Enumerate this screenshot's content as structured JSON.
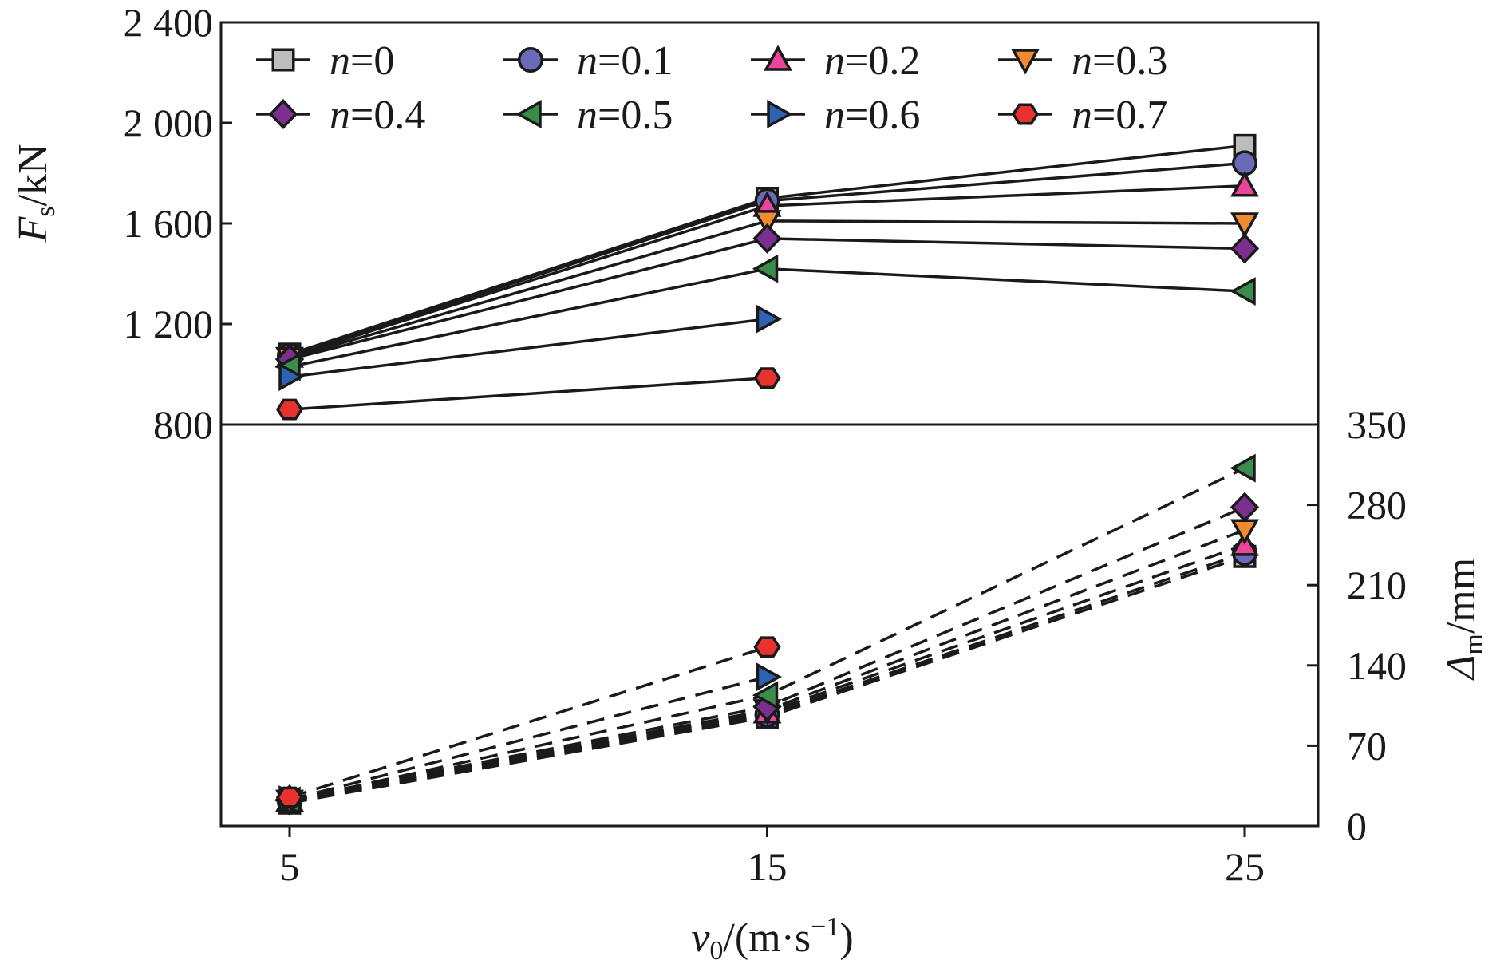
{
  "chart_data": {
    "type": "line",
    "x": [
      5,
      15,
      25
    ],
    "xlabel": {
      "main": "v",
      "sub": "0",
      "unit": "/(m·s",
      "sup": "−1",
      "close": ")"
    },
    "xticks": [
      "5",
      "15",
      "25"
    ],
    "top_panel": {
      "ylabel": {
        "main": "F",
        "sub": "s",
        "unit": "/kN"
      },
      "ylim": [
        800,
        2400
      ],
      "yticks": [
        "800",
        "1 200",
        "1 600",
        "2 000",
        "2 400"
      ],
      "ytick_values": [
        800,
        1200,
        1600,
        2000,
        2400
      ],
      "line_style": "solid"
    },
    "bottom_panel": {
      "ylabel": {
        "main": "Δ",
        "sub": "m",
        "unit": "/mm"
      },
      "ylim": [
        0,
        350
      ],
      "yticks": [
        "0",
        "70",
        "140",
        "210",
        "280",
        "350"
      ],
      "ytick_values": [
        0,
        70,
        140,
        210,
        280,
        350
      ],
      "axis_side": "right",
      "line_style": "dashed"
    },
    "legend": {
      "placement": "top",
      "columns": 4
    },
    "series": [
      {
        "name": "n=0",
        "var": "n",
        "val": "=0",
        "marker": "square",
        "color": "#bdbdbd",
        "force": [
          1080,
          1700,
          1910
        ],
        "delta": [
          20,
          95,
          235
        ]
      },
      {
        "name": "n=0.1",
        "var": "n",
        "val": "=0.1",
        "marker": "circle",
        "color": "#6a6ab8",
        "force": [
          1075,
          1690,
          1840
        ],
        "delta": [
          21,
          97,
          238
        ]
      },
      {
        "name": "n=0.2",
        "var": "n",
        "val": "=0.2",
        "marker": "triangle-up",
        "color": "#e8459b",
        "force": [
          1070,
          1670,
          1750
        ],
        "delta": [
          22,
          99,
          245
        ]
      },
      {
        "name": "n=0.3",
        "var": "n",
        "val": "=0.3",
        "marker": "triangle-down",
        "color": "#f28b30",
        "force": [
          1065,
          1610,
          1600
        ],
        "delta": [
          22,
          101,
          258
        ]
      },
      {
        "name": "n=0.4",
        "var": "n",
        "val": "=0.4",
        "marker": "diamond",
        "color": "#7b2f8e",
        "force": [
          1060,
          1540,
          1500
        ],
        "delta": [
          23,
          104,
          278
        ]
      },
      {
        "name": "n=0.5",
        "var": "n",
        "val": "=0.5",
        "marker": "triangle-left",
        "color": "#3a8c4a",
        "force": [
          1030,
          1420,
          1330
        ],
        "delta": [
          22,
          114,
          312
        ]
      },
      {
        "name": "n=0.6",
        "var": "n",
        "val": "=0.6",
        "marker": "triangle-right",
        "color": "#2e62b5",
        "force": [
          990,
          1220,
          null
        ],
        "delta": [
          23,
          130,
          null
        ]
      },
      {
        "name": "n=0.7",
        "var": "n",
        "val": "=0.7",
        "marker": "hexagon",
        "color": "#e8322d",
        "force": [
          860,
          985,
          null
        ],
        "delta": [
          25,
          156,
          null
        ]
      }
    ]
  }
}
